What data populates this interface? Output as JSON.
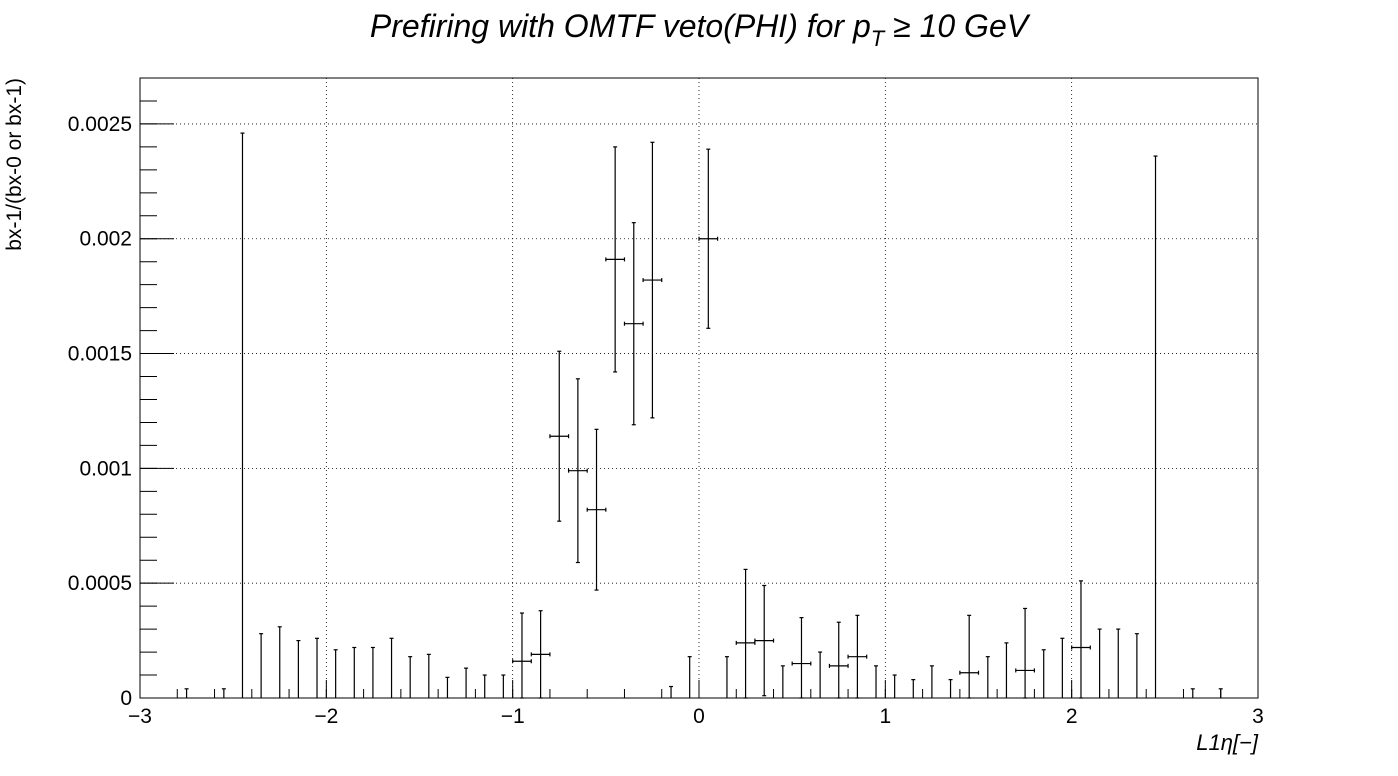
{
  "chart_data": {
    "type": "scatter",
    "title": "Prefiring with OMTF veto(PHI) for p_T ≥ 10 GeV",
    "title_parts": {
      "main": "Prefiring with OMTF veto(PHI) for p",
      "sub": "T",
      "rest": " ≥  10 GeV"
    },
    "xlabel": "L1η[−]",
    "ylabel": "bx-1/(bx-0 or bx-1)",
    "xlim": [
      -3,
      3
    ],
    "ylim": [
      0,
      0.0027
    ],
    "x_ticks": [
      -3,
      -2,
      -1,
      0,
      1,
      2,
      3
    ],
    "x_tick_labels": [
      "−3",
      "−2",
      "−1",
      "0",
      "1",
      "2",
      "3"
    ],
    "y_ticks": [
      0,
      0.0005,
      0.001,
      0.0015,
      0.002,
      0.0025
    ],
    "y_tick_labels": [
      "0",
      "0.0005",
      "0.001",
      "0.0015",
      "0.002",
      "0.0025"
    ],
    "grid": true,
    "bin_half_width": 0.05,
    "points": [
      {
        "x": -2.75,
        "y": 0,
        "err": 4e-05
      },
      {
        "x": -2.55,
        "y": 0,
        "err": 4e-05
      },
      {
        "x": -2.45,
        "y": 0,
        "err": 0.00246
      },
      {
        "x": -2.35,
        "y": 0,
        "err": 0.00028
      },
      {
        "x": -2.25,
        "y": 0,
        "err": 0.00031
      },
      {
        "x": -2.15,
        "y": 0,
        "err": 0.00025
      },
      {
        "x": -2.05,
        "y": 0,
        "err": 0.00026
      },
      {
        "x": -1.95,
        "y": 0,
        "err": 0.00021
      },
      {
        "x": -1.85,
        "y": 0,
        "err": 0.00022
      },
      {
        "x": -1.75,
        "y": 0,
        "err": 0.00022
      },
      {
        "x": -1.65,
        "y": 0,
        "err": 0.00026
      },
      {
        "x": -1.55,
        "y": 0,
        "err": 0.00018
      },
      {
        "x": -1.45,
        "y": 0,
        "err": 0.00019
      },
      {
        "x": -1.35,
        "y": 0,
        "err": 9e-05
      },
      {
        "x": -1.25,
        "y": 0,
        "err": 0.00013
      },
      {
        "x": -1.15,
        "y": 0,
        "err": 0.0001
      },
      {
        "x": -1.05,
        "y": 0,
        "err": 0.0001
      },
      {
        "x": -0.95,
        "y": 0.00016,
        "err": 0.00021
      },
      {
        "x": -0.85,
        "y": 0.00019,
        "err": 0.00019
      },
      {
        "x": -0.75,
        "y": 0.00114,
        "err": 0.00037
      },
      {
        "x": -0.65,
        "y": 0.00099,
        "err": 0.0004
      },
      {
        "x": -0.55,
        "y": 0.00082,
        "err": 0.00035
      },
      {
        "x": -0.45,
        "y": 0.00191,
        "err": 0.00049
      },
      {
        "x": -0.35,
        "y": 0.00163,
        "err": 0.00044
      },
      {
        "x": -0.25,
        "y": 0.00182,
        "err": 0.0006
      },
      {
        "x": -0.15,
        "y": 0,
        "err": 5e-05
      },
      {
        "x": -0.05,
        "y": 0,
        "err": 0.00018
      },
      {
        "x": 0.05,
        "y": 0.002,
        "err": 0.00039
      },
      {
        "x": 0.15,
        "y": 0,
        "err": 0.00018
      },
      {
        "x": 0.25,
        "y": 0.00024,
        "err": 0.00032
      },
      {
        "x": 0.35,
        "y": 0.00025,
        "err": 0.00024
      },
      {
        "x": 0.45,
        "y": 0,
        "err": 0.00014
      },
      {
        "x": 0.55,
        "y": 0.00015,
        "err": 0.0002
      },
      {
        "x": 0.65,
        "y": 0,
        "err": 0.0002
      },
      {
        "x": 0.75,
        "y": 0.00014,
        "err": 0.00019
      },
      {
        "x": 0.85,
        "y": 0.00018,
        "err": 0.00018
      },
      {
        "x": 0.95,
        "y": 0,
        "err": 0.00014
      },
      {
        "x": 1.05,
        "y": 0,
        "err": 0.0001
      },
      {
        "x": 1.15,
        "y": 0,
        "err": 8e-05
      },
      {
        "x": 1.25,
        "y": 0,
        "err": 0.00014
      },
      {
        "x": 1.35,
        "y": 0,
        "err": 8e-05
      },
      {
        "x": 1.45,
        "y": 0.00011,
        "err": 0.00025
      },
      {
        "x": 1.55,
        "y": 0,
        "err": 0.00018
      },
      {
        "x": 1.65,
        "y": 0,
        "err": 0.00024
      },
      {
        "x": 1.75,
        "y": 0.00012,
        "err": 0.00027
      },
      {
        "x": 1.85,
        "y": 0,
        "err": 0.00021
      },
      {
        "x": 1.95,
        "y": 0,
        "err": 0.00026
      },
      {
        "x": 2.05,
        "y": 0.00022,
        "err": 0.00029
      },
      {
        "x": 2.15,
        "y": 0,
        "err": 0.0003
      },
      {
        "x": 2.25,
        "y": 0,
        "err": 0.0003
      },
      {
        "x": 2.35,
        "y": 0,
        "err": 0.00028
      },
      {
        "x": 2.45,
        "y": 0,
        "err": 0.00236
      },
      {
        "x": 2.65,
        "y": 0,
        "err": 4e-05
      },
      {
        "x": 2.8,
        "y": 0,
        "err": 4e-05
      }
    ]
  }
}
